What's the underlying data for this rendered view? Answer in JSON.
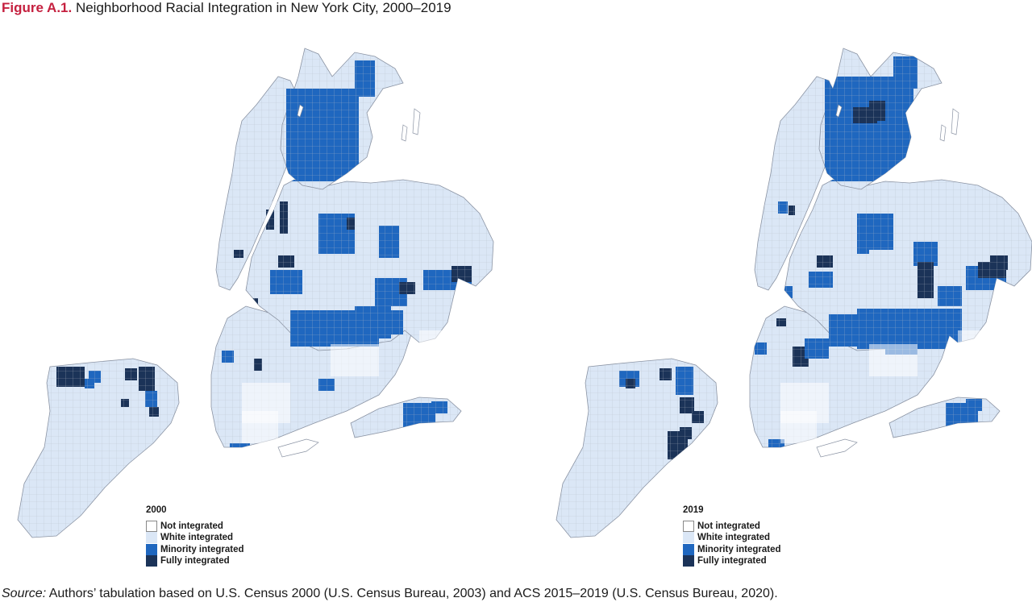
{
  "figure": {
    "label": "Figure A.1.",
    "title": "Neighborhood Racial Integration in New York City, 2000–2019"
  },
  "legend_items": [
    {
      "key": "not",
      "label": "Not integrated",
      "color": "#ffffff"
    },
    {
      "key": "white",
      "label": "White integrated",
      "color": "#dbe7f6"
    },
    {
      "key": "minority",
      "label": "Minority integrated",
      "color": "#1f67bf"
    },
    {
      "key": "fully",
      "label": "Fully integrated",
      "color": "#1b3358"
    }
  ],
  "maps": [
    {
      "year": "2000",
      "legend_title": "2000"
    },
    {
      "year": "2019",
      "legend_title": "2019"
    }
  ],
  "source": {
    "lead": "Source:",
    "text": " Authors’ tabulation based on U.S. Census 2000 (U.S. Census Bureau, 2003) and ACS 2015–2019 (U.S. Census Bureau, 2020)."
  }
}
